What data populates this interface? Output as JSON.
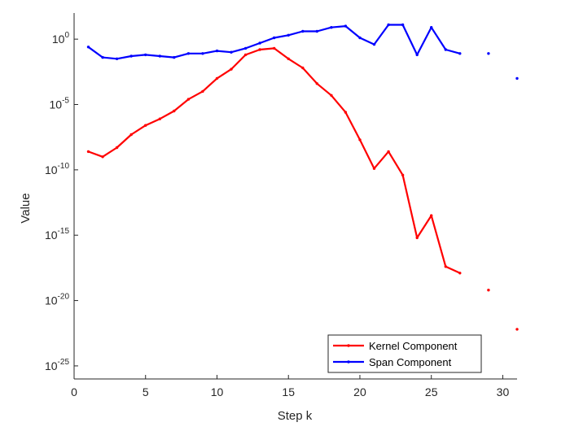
{
  "chart_data": {
    "type": "line",
    "title": "",
    "xlabel": "Step k",
    "ylabel": "Value",
    "xlim": [
      0,
      31
    ],
    "ylim_log10": [
      -26,
      2
    ],
    "yscale": "log",
    "grid": false,
    "legend_position": "bottom-right",
    "x_ticks": [
      {
        "value": 0,
        "label": "0"
      },
      {
        "value": 5,
        "label": "5"
      },
      {
        "value": 10,
        "label": "10"
      },
      {
        "value": 15,
        "label": "15"
      },
      {
        "value": 20,
        "label": "20"
      },
      {
        "value": 25,
        "label": "25"
      },
      {
        "value": 30,
        "label": "30"
      }
    ],
    "y_ticks": [
      {
        "exp": 0,
        "base": "10",
        "power": "0"
      },
      {
        "exp": -5,
        "base": "10",
        "power": "-5"
      },
      {
        "exp": -10,
        "base": "10",
        "power": "-10"
      },
      {
        "exp": -15,
        "base": "10",
        "power": "-15"
      },
      {
        "exp": -20,
        "base": "10",
        "power": "-20"
      },
      {
        "exp": -25,
        "base": "10",
        "power": "-25"
      }
    ],
    "series": [
      {
        "name": "Kernel Component",
        "color": "#ff0000",
        "x": [
          1,
          2,
          3,
          4,
          5,
          6,
          7,
          8,
          9,
          10,
          11,
          12,
          13,
          14,
          15,
          16,
          17,
          18,
          19,
          20,
          21,
          22,
          23,
          24,
          25,
          26,
          27,
          29,
          31
        ],
        "log10_y": [
          -8.6,
          -9.0,
          -8.3,
          -7.3,
          -6.6,
          -6.1,
          -5.5,
          -4.6,
          -4.0,
          -3.0,
          -2.3,
          -1.2,
          -0.8,
          -0.7,
          -1.5,
          -2.2,
          -3.4,
          -4.3,
          -5.6,
          -7.7,
          -9.9,
          -8.6,
          -10.4,
          -15.2,
          -13.5,
          -17.4,
          -17.9,
          -19.2,
          -22.2
        ]
      },
      {
        "name": "Span Component",
        "color": "#0000ff",
        "x": [
          1,
          2,
          3,
          4,
          5,
          6,
          7,
          8,
          9,
          10,
          11,
          12,
          13,
          14,
          15,
          16,
          17,
          18,
          19,
          20,
          21,
          22,
          23,
          24,
          25,
          26,
          27,
          29,
          31
        ],
        "log10_y": [
          -0.6,
          -1.4,
          -1.5,
          -1.3,
          -1.2,
          -1.3,
          -1.4,
          -1.1,
          -1.1,
          -0.9,
          -1.0,
          -0.7,
          -0.3,
          0.1,
          0.3,
          0.6,
          0.6,
          0.9,
          1.0,
          0.1,
          -0.4,
          1.1,
          1.1,
          -1.2,
          0.9,
          -0.8,
          -1.1,
          -1.1,
          -3.0
        ]
      }
    ]
  }
}
